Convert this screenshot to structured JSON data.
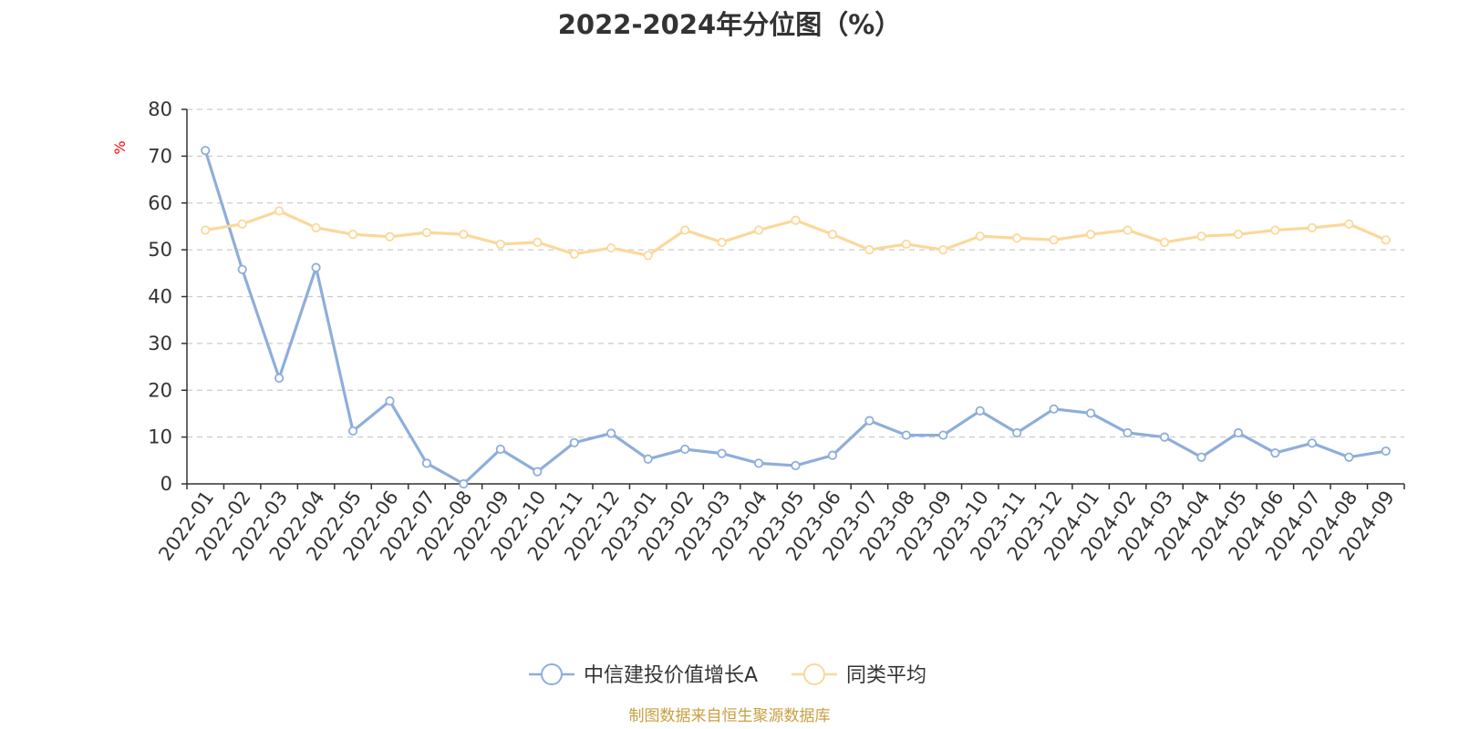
{
  "chart_data": {
    "type": "line",
    "title": "2022-2024年分位图（%）",
    "y_unit": "%",
    "ylim": [
      0,
      80
    ],
    "y_ticks": [
      0,
      10,
      20,
      30,
      40,
      50,
      60,
      70,
      80
    ],
    "grid": true,
    "legend_position": "bottom-center",
    "categories": [
      "2022-01",
      "2022-02",
      "2022-03",
      "2022-04",
      "2022-05",
      "2022-06",
      "2022-07",
      "2022-08",
      "2022-09",
      "2022-10",
      "2022-11",
      "2022-12",
      "2023-01",
      "2023-02",
      "2023-03",
      "2023-04",
      "2023-05",
      "2023-06",
      "2023-07",
      "2023-08",
      "2023-09",
      "2023-10",
      "2023-11",
      "2023-12",
      "2024-01",
      "2024-02",
      "2024-03",
      "2024-04",
      "2024-05",
      "2024-06",
      "2024-07",
      "2024-08",
      "2024-09"
    ],
    "series": [
      {
        "name": "中信建投价值增长A",
        "color": "#8eaedb",
        "values": [
          71.2,
          45.8,
          22.6,
          46.2,
          11.3,
          17.7,
          4.4,
          0.0,
          7.4,
          2.6,
          8.8,
          10.8,
          5.3,
          7.4,
          6.5,
          4.4,
          3.9,
          6.1,
          13.5,
          10.4,
          10.4,
          15.6,
          10.9,
          16.0,
          15.1,
          10.9,
          10.0,
          5.7,
          10.9,
          6.6,
          8.7,
          5.7,
          7.0
        ]
      },
      {
        "name": "同类平均",
        "color": "#fbd89a",
        "values": [
          54.2,
          55.5,
          58.3,
          54.7,
          53.3,
          52.8,
          53.7,
          53.3,
          51.2,
          51.6,
          49.1,
          50.4,
          48.8,
          54.2,
          51.6,
          54.2,
          56.3,
          53.3,
          50.0,
          51.2,
          50.0,
          52.9,
          52.5,
          52.1,
          53.3,
          54.2,
          51.6,
          52.9,
          53.3,
          54.2,
          54.7,
          55.5,
          52.1
        ]
      }
    ]
  },
  "source_note": "制图数据来自恒生聚源数据库",
  "colors": {
    "axis": "#333333",
    "grid": "#cccccc",
    "unit": "#ff0000",
    "source": "#c8a040"
  }
}
